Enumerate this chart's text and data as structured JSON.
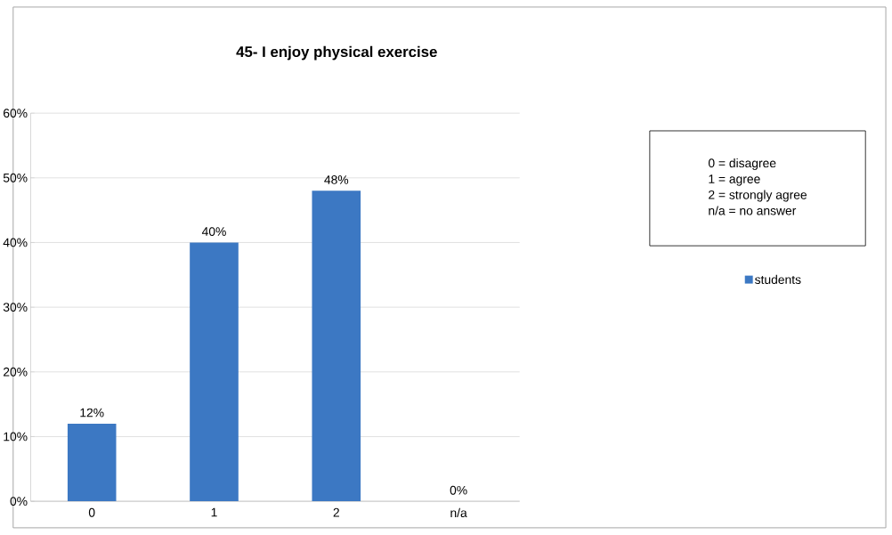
{
  "chart_data": {
    "type": "bar",
    "title": "45- I enjoy physical exercise",
    "categories": [
      "0",
      "1",
      "2",
      "n/a"
    ],
    "series": [
      {
        "name": "students",
        "color": "#3c78c3",
        "values": [
          12,
          40,
          48,
          0
        ],
        "value_labels": [
          "12%",
          "40%",
          "48%",
          "0%"
        ]
      }
    ],
    "ylim": [
      0,
      60
    ],
    "yticks": [
      {
        "value": 0,
        "label": "0%"
      },
      {
        "value": 10,
        "label": "10%"
      },
      {
        "value": 20,
        "label": "20%"
      },
      {
        "value": 30,
        "label": "30%"
      },
      {
        "value": 40,
        "label": "40%"
      },
      {
        "value": 50,
        "label": "50%"
      },
      {
        "value": 60,
        "label": "60%"
      }
    ],
    "grid": "y",
    "legend": "right",
    "annotations": [
      "0 = disagree",
      "1 = agree",
      "2 = strongly agree",
      "n/a = no answer"
    ]
  }
}
